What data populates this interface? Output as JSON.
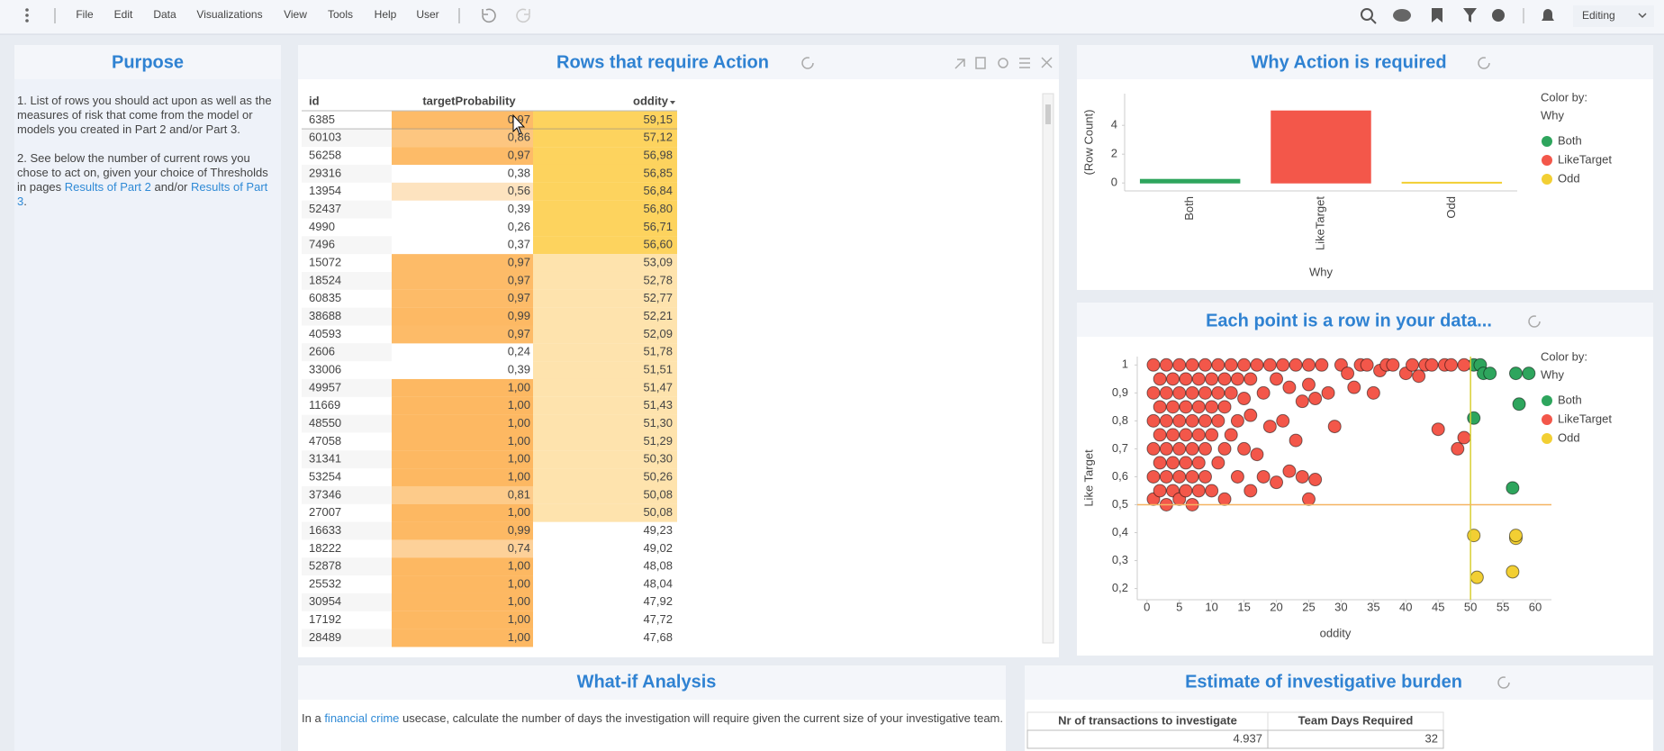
{
  "toolbar": {
    "menu": [
      "File",
      "Edit",
      "Data",
      "Visualizations",
      "View",
      "Tools",
      "Help",
      "User"
    ],
    "mode": "Editing"
  },
  "purpose": {
    "title": "Purpose",
    "p1": "1. List of rows you should act upon as well as the measures of risk that come from the model or models you created in Part 2 and/or Part 3.",
    "p2": [
      "2. See below the number of current rows you chose to act on, given your choice of Thresholds in pages",
      "Results of Part 2",
      "and/or",
      "Results of Part 3",
      "."
    ]
  },
  "rows_table": {
    "title": "Rows that require Action",
    "columns": [
      "id",
      "targetProbability",
      "oddity"
    ],
    "rows": [
      [
        "6385",
        "0,97",
        "59,15"
      ],
      [
        "60103",
        "0,86",
        "57,12"
      ],
      [
        "56258",
        "0,97",
        "56,98"
      ],
      [
        "29316",
        "0,38",
        "56,85"
      ],
      [
        "13954",
        "0,56",
        "56,84"
      ],
      [
        "52437",
        "0,39",
        "56,80"
      ],
      [
        "4990",
        "0,26",
        "56,71"
      ],
      [
        "7496",
        "0,37",
        "56,60"
      ],
      [
        "15072",
        "0,97",
        "53,09"
      ],
      [
        "18524",
        "0,97",
        "52,78"
      ],
      [
        "60835",
        "0,97",
        "52,77"
      ],
      [
        "38688",
        "0,99",
        "52,21"
      ],
      [
        "40593",
        "0,97",
        "52,09"
      ],
      [
        "2606",
        "0,24",
        "51,78"
      ],
      [
        "33006",
        "0,39",
        "51,51"
      ],
      [
        "49957",
        "1,00",
        "51,47"
      ],
      [
        "11669",
        "1,00",
        "51,43"
      ],
      [
        "48550",
        "1,00",
        "51,30"
      ],
      [
        "47058",
        "1,00",
        "51,29"
      ],
      [
        "31341",
        "1,00",
        "50,30"
      ],
      [
        "53254",
        "1,00",
        "50,26"
      ],
      [
        "37346",
        "0,81",
        "50,08"
      ],
      [
        "27007",
        "1,00",
        "50,08"
      ],
      [
        "16633",
        "0,99",
        "49,23"
      ],
      [
        "18222",
        "0,74",
        "49,02"
      ],
      [
        "52878",
        "1,00",
        "48,08"
      ],
      [
        "25532",
        "1,00",
        "48,04"
      ],
      [
        "30954",
        "1,00",
        "47,92"
      ],
      [
        "17192",
        "1,00",
        "47,72"
      ],
      [
        "28489",
        "1,00",
        "47,68"
      ]
    ]
  },
  "why_chart": {
    "type": "bar",
    "title": "Why Action is required",
    "x_label": "Why",
    "y_label": "(Row Count)",
    "categories": [
      "Both",
      "LikeTarget",
      "Odd"
    ],
    "values": [
      0.25,
      5,
      0.05
    ],
    "colors": [
      "#2ea55d",
      "#f3574a",
      "#f2cf33"
    ],
    "ylim": [
      -0.55,
      6.2
    ],
    "yticks": [
      0,
      2,
      4
    ],
    "legend": {
      "title": "Color by:",
      "field": "Why"
    }
  },
  "scatter_chart": {
    "type": "scatter",
    "title": "Each point is a row in your data...",
    "x_label": "oddity",
    "y_label": "Like Target",
    "xlim": [
      -1.5,
      62.5
    ],
    "ylim": [
      0.16,
      1.03
    ],
    "xticks": [
      0,
      5,
      10,
      15,
      20,
      25,
      30,
      35,
      40,
      45,
      50,
      55,
      60
    ],
    "yticks": [
      {
        "value": 0.2,
        "label": "0,2"
      },
      {
        "value": 0.3,
        "label": "0,3"
      },
      {
        "value": 0.4,
        "label": "0,4"
      },
      {
        "value": 0.5,
        "label": "0,5"
      },
      {
        "value": 0.6,
        "label": "0,6"
      },
      {
        "value": 0.7,
        "label": "0,7"
      },
      {
        "value": 0.8,
        "label": "0,8"
      },
      {
        "value": 0.9,
        "label": "0,9"
      },
      1
    ],
    "vline_x": 50,
    "hline_y": 0.5,
    "legend": {
      "title": "Color by:",
      "field": "Why"
    },
    "series": [
      {
        "name": "Both",
        "color": "#2ea55d",
        "x": [
          50.5,
          51.5,
          52,
          53,
          57,
          59,
          57.5,
          50.5,
          56.5
        ],
        "y": [
          1,
          1,
          0.97,
          0.97,
          0.97,
          0.97,
          0.86,
          0.81,
          0.56
        ]
      },
      {
        "name": "LikeTarget",
        "color": "#f3574a",
        "x": [
          1,
          1,
          1,
          1,
          1,
          1,
          2,
          2,
          2,
          2,
          2,
          3,
          3,
          3,
          3,
          3,
          3,
          4,
          4,
          4,
          4,
          4,
          5,
          5,
          5,
          5,
          5,
          5,
          6,
          6,
          6,
          6,
          6,
          7,
          7,
          7,
          7,
          7,
          7,
          8,
          8,
          8,
          8,
          8,
          9,
          9,
          9,
          9,
          9,
          10,
          10,
          10,
          10,
          11,
          11,
          11,
          11,
          12,
          12,
          12,
          12,
          13,
          13,
          13,
          14,
          14,
          14,
          15,
          15,
          15,
          16,
          16,
          16,
          17,
          17,
          18,
          18,
          19,
          19,
          20,
          20,
          21,
          21,
          22,
          22,
          23,
          23,
          24,
          24,
          25,
          25,
          25,
          26,
          26,
          27,
          28,
          29,
          30,
          31,
          32,
          33,
          34,
          35,
          36,
          37,
          38,
          40,
          41,
          42,
          43,
          44,
          45,
          46,
          47,
          48,
          49,
          49
        ],
        "y": [
          1,
          0.9,
          0.8,
          0.7,
          0.6,
          0.52,
          0.95,
          0.85,
          0.75,
          0.65,
          0.55,
          1,
          0.9,
          0.8,
          0.7,
          0.6,
          0.5,
          0.95,
          0.85,
          0.75,
          0.65,
          0.55,
          1,
          0.9,
          0.8,
          0.7,
          0.6,
          0.52,
          0.95,
          0.85,
          0.75,
          0.65,
          0.55,
          1,
          0.9,
          0.8,
          0.7,
          0.6,
          0.5,
          0.95,
          0.85,
          0.75,
          0.65,
          0.55,
          1,
          0.9,
          0.8,
          0.7,
          0.6,
          0.95,
          0.85,
          0.75,
          0.55,
          1,
          0.9,
          0.8,
          0.65,
          0.95,
          0.85,
          0.7,
          0.52,
          1,
          0.9,
          0.75,
          0.95,
          0.8,
          0.6,
          1,
          0.88,
          0.7,
          0.95,
          0.82,
          0.55,
          1,
          0.68,
          0.9,
          0.6,
          1,
          0.78,
          0.95,
          0.58,
          1,
          0.8,
          0.92,
          0.62,
          1,
          0.73,
          0.87,
          0.6,
          1,
          0.93,
          0.52,
          0.88,
          0.59,
          1,
          0.9,
          0.78,
          1,
          0.97,
          0.92,
          1,
          1,
          0.9,
          0.98,
          1,
          1,
          0.97,
          1,
          0.96,
          1,
          1,
          0.77,
          1,
          1,
          0.7,
          0.74,
          1
        ]
      },
      {
        "name": "Odd",
        "color": "#f2cf33",
        "x": [
          50.5,
          57,
          57,
          51,
          56.5
        ],
        "y": [
          0.39,
          0.38,
          0.39,
          0.24,
          0.26
        ]
      }
    ]
  },
  "what_if": {
    "title": "What-if Analysis",
    "text": [
      "In a",
      "financial crime",
      "usecase, calculate the number of days the investigation will require given the current size of your investigative team."
    ]
  },
  "burden": {
    "title": "Estimate of investigative burden",
    "columns": [
      "Nr of transactions to investigate",
      "Team Days Required"
    ],
    "rows": [
      [
        "4.937",
        "32"
      ]
    ]
  }
}
